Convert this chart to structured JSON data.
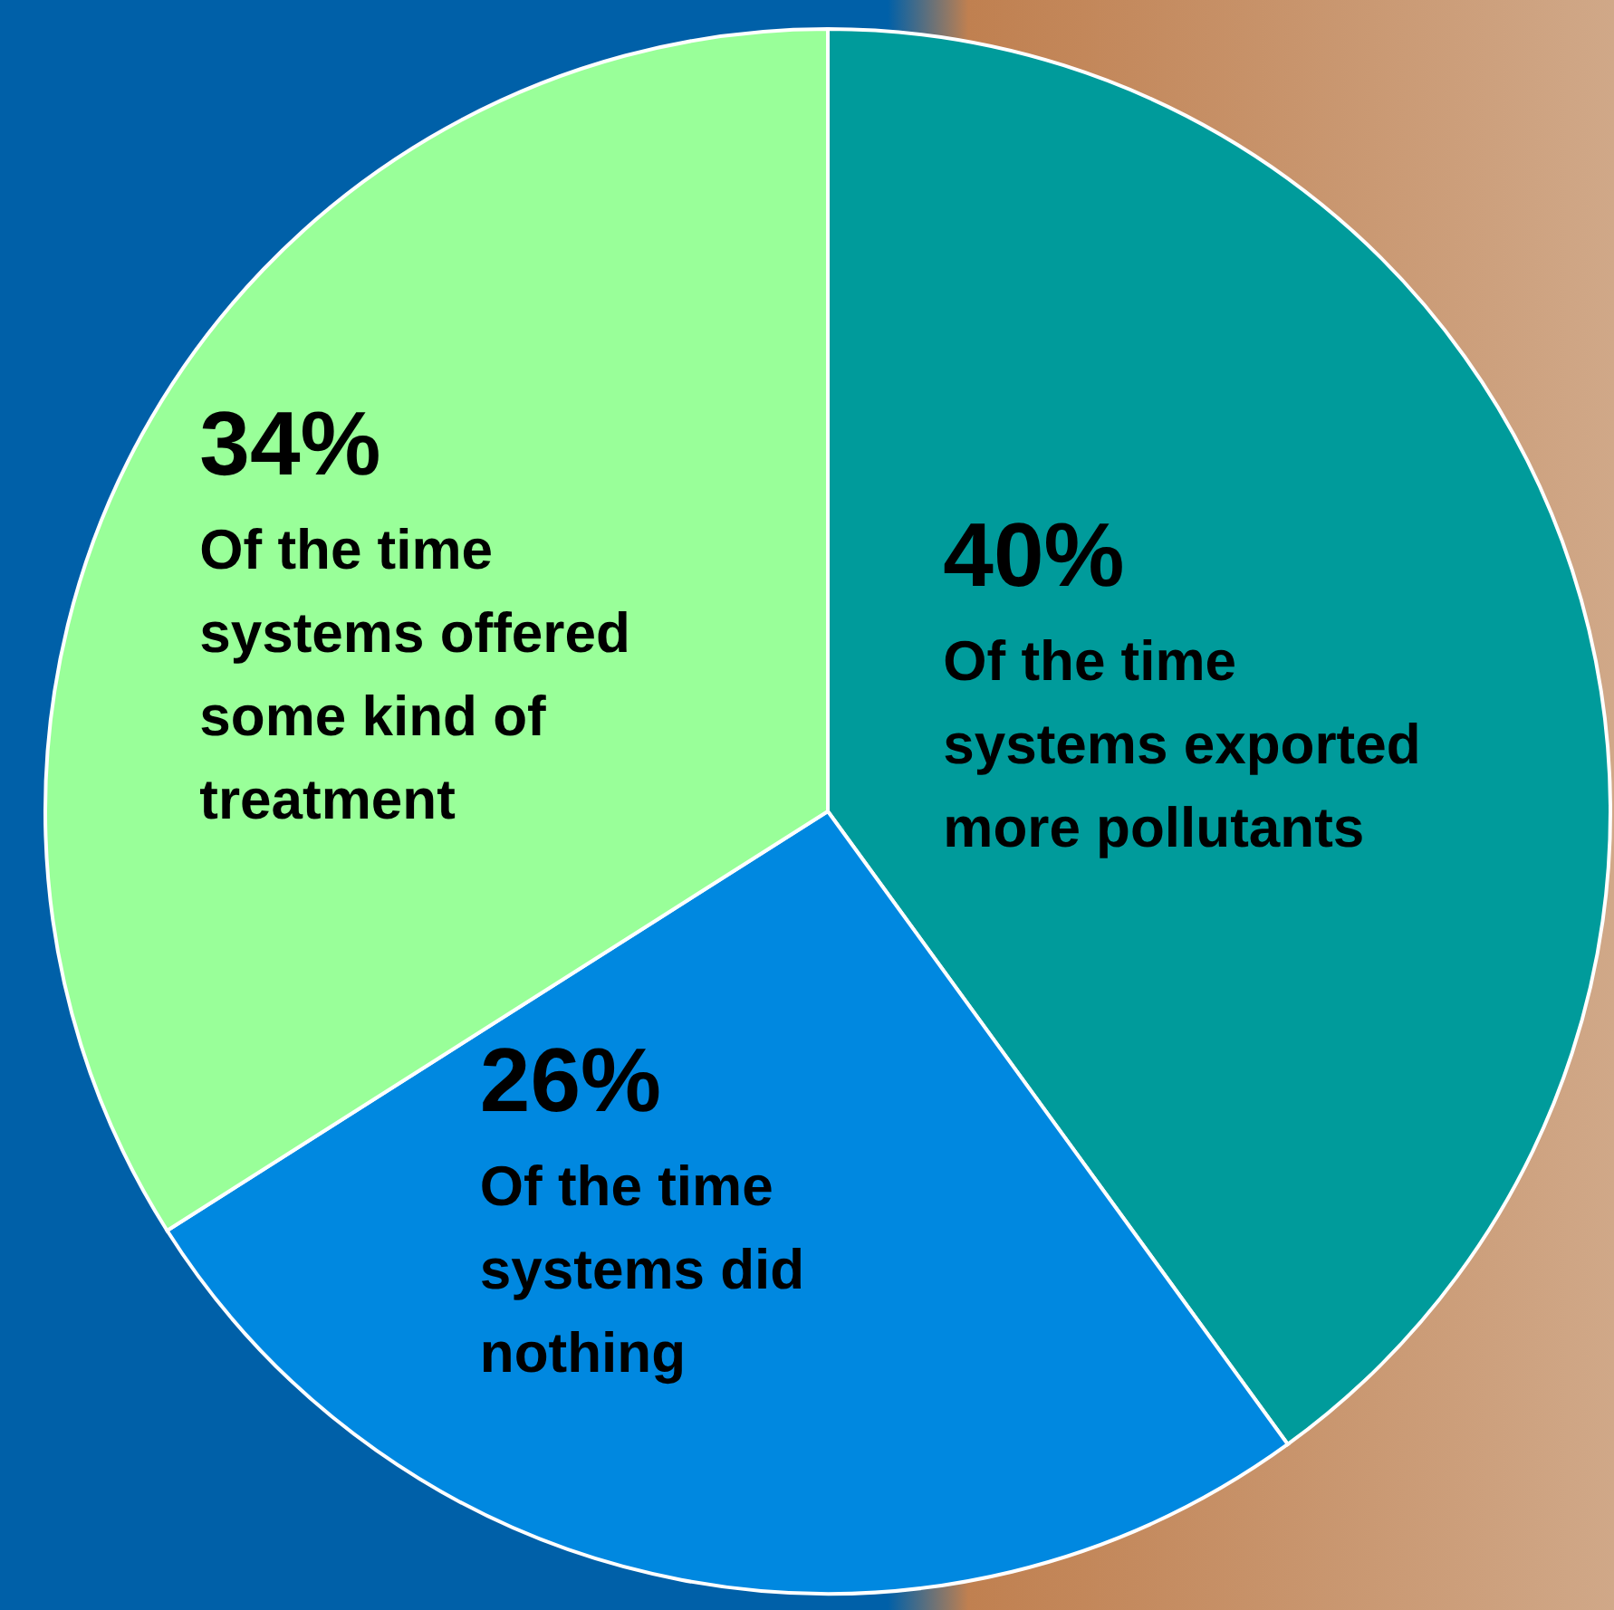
{
  "chart_data": {
    "type": "pie",
    "categories": [
      "Of the time systems exported more pollutants",
      "Of the time systems did nothing",
      "Of the time systems offered some kind of treatment"
    ],
    "values": [
      40,
      26,
      34
    ],
    "value_labels": [
      "40%",
      "26%",
      "34%"
    ],
    "colors": [
      "#009b9b",
      "#0088e0",
      "#99ff99"
    ]
  }
}
